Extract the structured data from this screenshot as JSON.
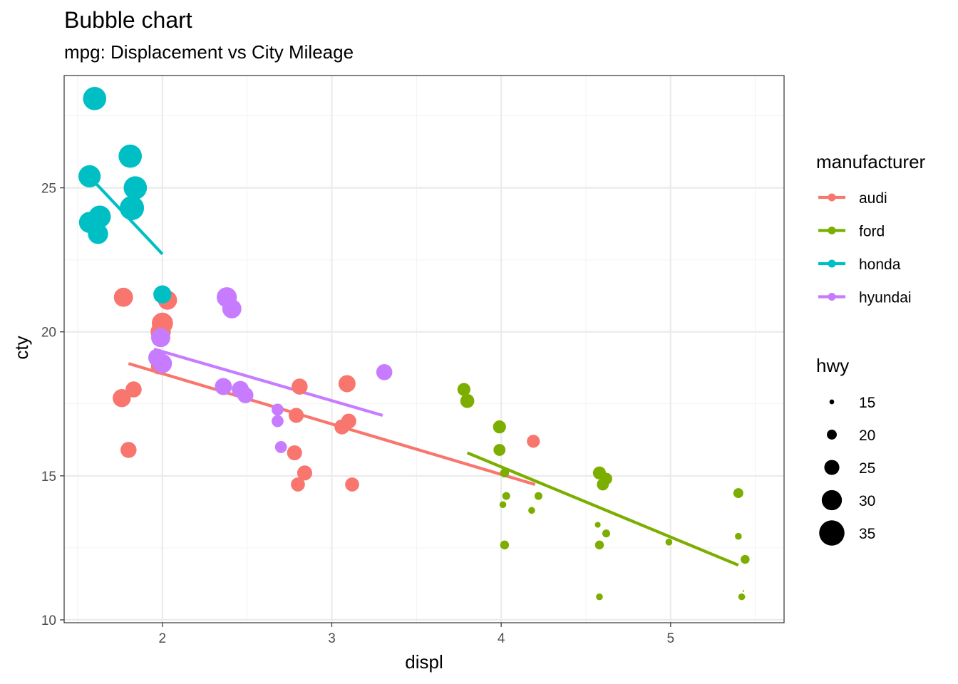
{
  "chart_data": {
    "type": "scatter",
    "title": "Bubble chart",
    "subtitle": "mpg: Displacement vs City Mileage",
    "xlabel": "displ",
    "ylabel": "cty",
    "xlim": [
      1.42,
      5.67
    ],
    "ylim": [
      9.9,
      28.9
    ],
    "x_ticks": [
      2,
      3,
      4,
      5
    ],
    "y_ticks": [
      10,
      15,
      20,
      25
    ],
    "grid": true,
    "legend_position": "right",
    "color_legend_title": "manufacturer",
    "size_legend_title": "hwy",
    "size_legend": [
      15,
      20,
      25,
      30,
      35
    ],
    "series": [
      {
        "name": "audi",
        "color": "#F8766D",
        "points": [
          {
            "x": 1.77,
            "y": 21.2,
            "hwy": 29
          },
          {
            "x": 2.03,
            "y": 21.1,
            "hwy": 29
          },
          {
            "x": 2.0,
            "y": 20.3,
            "hwy": 31
          },
          {
            "x": 1.99,
            "y": 20.0,
            "hwy": 30
          },
          {
            "x": 1.98,
            "y": 18.8,
            "hwy": 26
          },
          {
            "x": 1.83,
            "y": 18.0,
            "hwy": 26
          },
          {
            "x": 1.76,
            "y": 17.7,
            "hwy": 28
          },
          {
            "x": 1.8,
            "y": 15.9,
            "hwy": 26
          },
          {
            "x": 2.81,
            "y": 18.1,
            "hwy": 26
          },
          {
            "x": 3.09,
            "y": 18.2,
            "hwy": 27
          },
          {
            "x": 2.79,
            "y": 17.1,
            "hwy": 25
          },
          {
            "x": 3.1,
            "y": 16.9,
            "hwy": 25
          },
          {
            "x": 3.06,
            "y": 16.7,
            "hwy": 25
          },
          {
            "x": 2.78,
            "y": 15.8,
            "hwy": 25
          },
          {
            "x": 2.84,
            "y": 15.1,
            "hwy": 25
          },
          {
            "x": 2.8,
            "y": 14.7,
            "hwy": 24
          },
          {
            "x": 3.12,
            "y": 14.7,
            "hwy": 24
          },
          {
            "x": 4.19,
            "y": 16.2,
            "hwy": 23
          }
        ],
        "fit": {
          "x1": 1.8,
          "y1": 18.9,
          "x2": 4.2,
          "y2": 14.7
        }
      },
      {
        "name": "ford",
        "color": "#7CAE00",
        "points": [
          {
            "x": 3.78,
            "y": 18.0,
            "hwy": 23
          },
          {
            "x": 3.8,
            "y": 17.6,
            "hwy": 24
          },
          {
            "x": 3.99,
            "y": 16.7,
            "hwy": 23
          },
          {
            "x": 3.99,
            "y": 15.9,
            "hwy": 22
          },
          {
            "x": 4.02,
            "y": 15.1,
            "hwy": 19
          },
          {
            "x": 4.03,
            "y": 14.3,
            "hwy": 18
          },
          {
            "x": 4.01,
            "y": 14.0,
            "hwy": 17
          },
          {
            "x": 4.02,
            "y": 12.6,
            "hwy": 19
          },
          {
            "x": 4.18,
            "y": 13.8,
            "hwy": 17
          },
          {
            "x": 4.22,
            "y": 14.3,
            "hwy": 18
          },
          {
            "x": 4.58,
            "y": 15.1,
            "hwy": 23
          },
          {
            "x": 4.62,
            "y": 14.9,
            "hwy": 22
          },
          {
            "x": 4.6,
            "y": 14.7,
            "hwy": 22
          },
          {
            "x": 4.57,
            "y": 13.3,
            "hwy": 16
          },
          {
            "x": 4.62,
            "y": 13.0,
            "hwy": 18
          },
          {
            "x": 4.58,
            "y": 12.6,
            "hwy": 19
          },
          {
            "x": 4.58,
            "y": 10.8,
            "hwy": 17
          },
          {
            "x": 4.99,
            "y": 12.7,
            "hwy": 17
          },
          {
            "x": 5.4,
            "y": 14.4,
            "hwy": 20
          },
          {
            "x": 5.4,
            "y": 12.9,
            "hwy": 17
          },
          {
            "x": 5.44,
            "y": 12.1,
            "hwy": 19
          },
          {
            "x": 5.42,
            "y": 10.8,
            "hwy": 17
          },
          {
            "x": 5.43,
            "y": 11.0,
            "hwy": 12
          }
        ],
        "fit": {
          "x1": 3.8,
          "y1": 15.8,
          "x2": 5.4,
          "y2": 11.9
        }
      },
      {
        "name": "honda",
        "color": "#00BFC4",
        "points": [
          {
            "x": 1.6,
            "y": 28.1,
            "hwy": 33
          },
          {
            "x": 1.81,
            "y": 26.1,
            "hwy": 33
          },
          {
            "x": 1.57,
            "y": 25.4,
            "hwy": 32
          },
          {
            "x": 1.84,
            "y": 25.0,
            "hwy": 33
          },
          {
            "x": 1.63,
            "y": 24.0,
            "hwy": 32
          },
          {
            "x": 1.82,
            "y": 24.3,
            "hwy": 34
          },
          {
            "x": 1.57,
            "y": 23.8,
            "hwy": 31
          },
          {
            "x": 1.62,
            "y": 23.4,
            "hwy": 30
          },
          {
            "x": 2.0,
            "y": 21.3,
            "hwy": 28
          }
        ],
        "fit": {
          "x1": 1.6,
          "y1": 25.2,
          "x2": 2.0,
          "y2": 22.7
        }
      },
      {
        "name": "hyundai",
        "color": "#C77CFF",
        "points": [
          {
            "x": 2.38,
            "y": 21.2,
            "hwy": 30
          },
          {
            "x": 2.41,
            "y": 20.8,
            "hwy": 29
          },
          {
            "x": 1.99,
            "y": 19.8,
            "hwy": 29
          },
          {
            "x": 1.97,
            "y": 19.1,
            "hwy": 28
          },
          {
            "x": 2.0,
            "y": 18.9,
            "hwy": 29
          },
          {
            "x": 2.36,
            "y": 18.1,
            "hwy": 27
          },
          {
            "x": 2.46,
            "y": 18.0,
            "hwy": 27
          },
          {
            "x": 2.49,
            "y": 17.8,
            "hwy": 26
          },
          {
            "x": 3.31,
            "y": 18.6,
            "hwy": 26
          },
          {
            "x": 2.68,
            "y": 17.3,
            "hwy": 22
          },
          {
            "x": 2.68,
            "y": 16.9,
            "hwy": 22
          },
          {
            "x": 2.7,
            "y": 16.0,
            "hwy": 22
          }
        ],
        "fit": {
          "x1": 1.95,
          "y1": 19.4,
          "x2": 3.3,
          "y2": 17.1
        }
      }
    ]
  }
}
